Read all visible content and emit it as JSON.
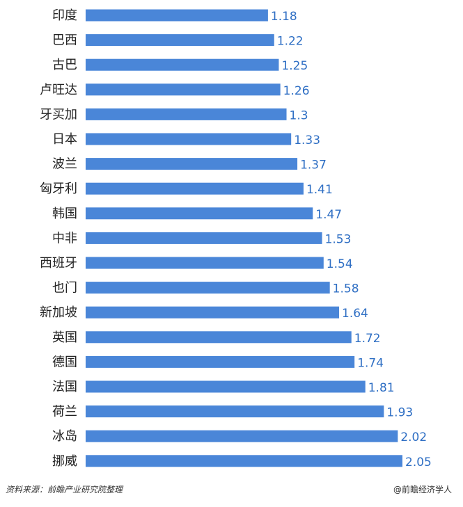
{
  "chart_data": {
    "type": "bar",
    "orientation": "horizontal",
    "categories": [
      "印度",
      "巴西",
      "古巴",
      "卢旺达",
      "牙买加",
      "日本",
      "波兰",
      "匈牙利",
      "韩国",
      "中非",
      "西班牙",
      "也门",
      "新加坡",
      "英国",
      "德国",
      "法国",
      "荷兰",
      "冰岛",
      "挪威"
    ],
    "values": [
      1.18,
      1.22,
      1.25,
      1.26,
      1.3,
      1.33,
      1.37,
      1.41,
      1.47,
      1.53,
      1.54,
      1.58,
      1.64,
      1.72,
      1.74,
      1.81,
      1.93,
      2.02,
      2.05
    ],
    "value_labels": [
      "1.18",
      "1.22",
      "1.25",
      "1.26",
      "1.3",
      "1.33",
      "1.37",
      "1.41",
      "1.47",
      "1.53",
      "1.54",
      "1.58",
      "1.64",
      "1.72",
      "1.74",
      "1.81",
      "1.93",
      "2.02",
      "2.05"
    ],
    "title": "",
    "xlabel": "",
    "ylabel": "",
    "xlim": [
      0,
      2.05
    ],
    "grid": false,
    "legend": "none",
    "colors": {
      "bar": "#4A86D8",
      "value_label": "#2F6FC4",
      "category_label": "#222222"
    }
  },
  "footer": {
    "source": "资料来源：前瞻产业研究院整理",
    "brand": "@前瞻经济学人"
  }
}
